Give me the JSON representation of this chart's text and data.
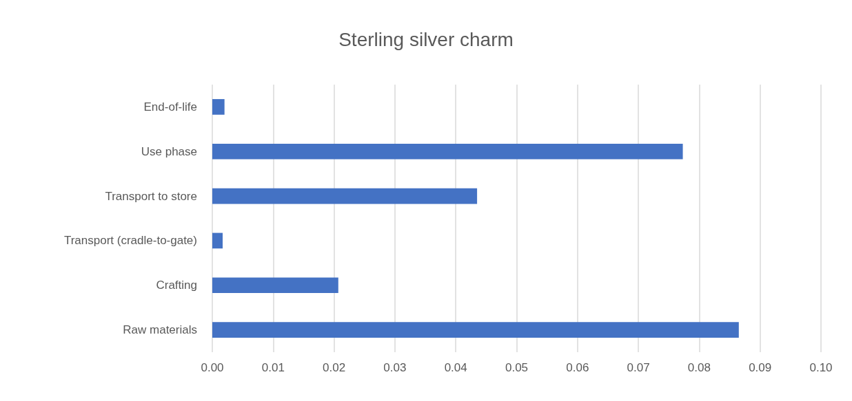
{
  "chart_data": {
    "type": "bar",
    "orientation": "horizontal",
    "title": "Sterling silver charm",
    "categories": [
      "End-of-life",
      "Use phase",
      "Transport to store",
      "Transport (cradle-to-gate)",
      "Crafting",
      "Raw materials"
    ],
    "values": [
      0.002,
      0.0773,
      0.0435,
      0.0017,
      0.0207,
      0.0865
    ],
    "color": "#4472c4",
    "xlim": [
      0,
      0.1
    ],
    "xticks": [
      {
        "value": 0,
        "label": "0.00"
      },
      {
        "value": 0.01,
        "label": "0.01"
      },
      {
        "value": 0.02,
        "label": "0.02"
      },
      {
        "value": 0.03,
        "label": "0.03"
      },
      {
        "value": 0.04,
        "label": "0.04"
      },
      {
        "value": 0.05,
        "label": "0.05"
      },
      {
        "value": 0.06,
        "label": "0.06"
      },
      {
        "value": 0.07,
        "label": "0.07"
      },
      {
        "value": 0.08,
        "label": "0.08"
      },
      {
        "value": 0.09,
        "label": "0.09"
      },
      {
        "value": 0.1,
        "label": "0.10"
      }
    ],
    "grid": "x"
  }
}
